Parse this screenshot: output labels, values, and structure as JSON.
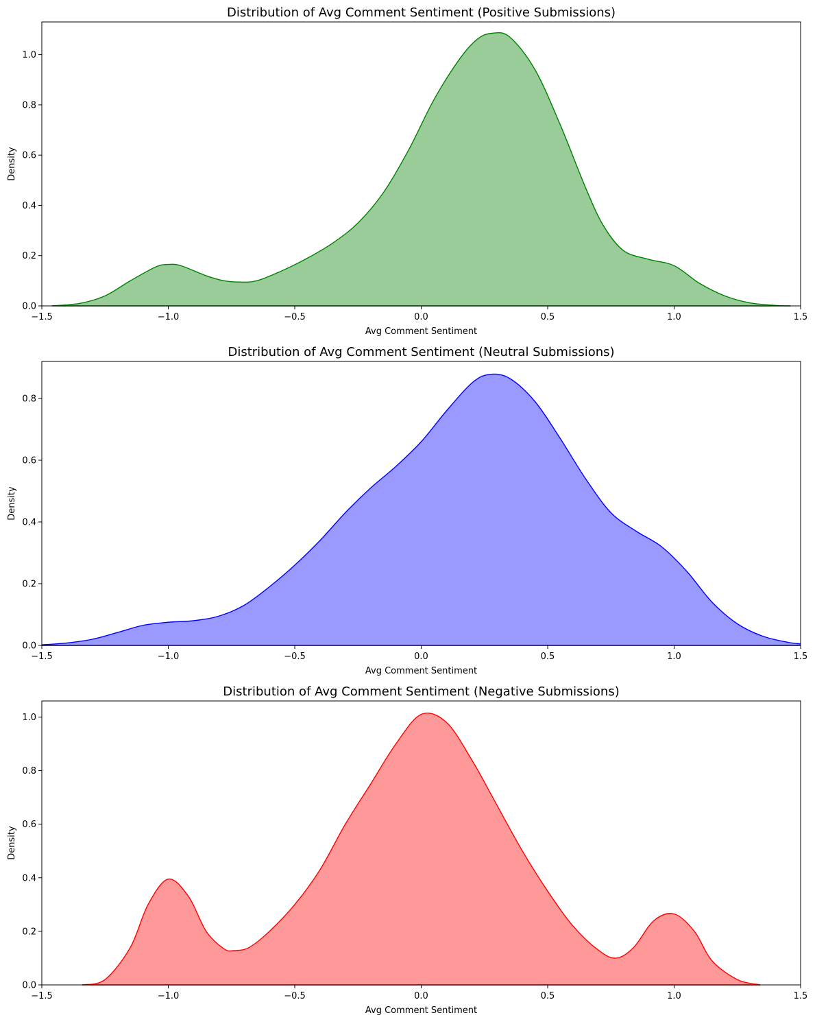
{
  "chart_data": [
    {
      "type": "area",
      "title": "Distribution of Avg Comment Sentiment (Positive Submissions)",
      "xlabel": "Avg Comment Sentiment",
      "ylabel": "Density",
      "xlim": [
        -1.5,
        1.5
      ],
      "ylim": [
        0,
        1.13
      ],
      "xticks": [
        -1.5,
        -1.0,
        -0.5,
        0.0,
        0.5,
        1.0,
        1.5
      ],
      "xtick_labels": [
        "−1.5",
        "−1.0",
        "−0.5",
        "0.0",
        "0.5",
        "1.0",
        "1.5"
      ],
      "yticks": [
        0,
        0.2,
        0.4,
        0.6,
        0.8,
        1.0
      ],
      "ytick_labels": [
        "0.0",
        "0.2",
        "0.4",
        "0.6",
        "0.8",
        "1.0"
      ],
      "color": "#008000",
      "fill_color": "#99cc99",
      "grid": false,
      "x": [
        -1.46,
        -1.35,
        -1.25,
        -1.15,
        -1.05,
        -1.0,
        -0.95,
        -0.85,
        -0.78,
        -0.72,
        -0.65,
        -0.55,
        -0.45,
        -0.35,
        -0.25,
        -0.15,
        -0.05,
        0.05,
        0.15,
        0.22,
        0.28,
        0.35,
        0.45,
        0.55,
        0.65,
        0.72,
        0.8,
        0.9,
        1.0,
        1.1,
        1.2,
        1.3,
        1.4,
        1.46
      ],
      "y": [
        0.0,
        0.01,
        0.04,
        0.1,
        0.155,
        0.165,
        0.16,
        0.12,
        0.1,
        0.095,
        0.1,
        0.14,
        0.19,
        0.25,
        0.33,
        0.45,
        0.62,
        0.82,
        0.98,
        1.06,
        1.085,
        1.07,
        0.94,
        0.72,
        0.47,
        0.32,
        0.22,
        0.185,
        0.16,
        0.09,
        0.04,
        0.012,
        0.002,
        0.0
      ]
    },
    {
      "type": "area",
      "title": "Distribution of Avg Comment Sentiment (Neutral Submissions)",
      "xlabel": "Avg Comment Sentiment",
      "ylabel": "Density",
      "xlim": [
        -1.5,
        1.5
      ],
      "ylim": [
        0,
        0.92
      ],
      "xticks": [
        -1.5,
        -1.0,
        -0.5,
        0.0,
        0.5,
        1.0,
        1.5
      ],
      "xtick_labels": [
        "−1.5",
        "−1.0",
        "−0.5",
        "0.0",
        "0.5",
        "1.0",
        "1.5"
      ],
      "yticks": [
        0,
        0.2,
        0.4,
        0.6,
        0.8
      ],
      "ytick_labels": [
        "0.0",
        "0.2",
        "0.4",
        "0.6",
        "0.8"
      ],
      "color": "#0000ff",
      "fill_color": "#9999ff",
      "grid": false,
      "x": [
        -1.5,
        -1.4,
        -1.3,
        -1.2,
        -1.1,
        -1.0,
        -0.9,
        -0.8,
        -0.7,
        -0.6,
        -0.5,
        -0.4,
        -0.3,
        -0.2,
        -0.1,
        0.0,
        0.1,
        0.2,
        0.27,
        0.35,
        0.45,
        0.55,
        0.65,
        0.75,
        0.85,
        0.95,
        1.05,
        1.15,
        1.25,
        1.35,
        1.45,
        1.5
      ],
      "y": [
        0.002,
        0.008,
        0.02,
        0.042,
        0.065,
        0.075,
        0.08,
        0.095,
        0.13,
        0.19,
        0.26,
        0.34,
        0.43,
        0.51,
        0.58,
        0.66,
        0.76,
        0.85,
        0.878,
        0.865,
        0.79,
        0.67,
        0.54,
        0.43,
        0.37,
        0.32,
        0.24,
        0.14,
        0.07,
        0.03,
        0.01,
        0.005
      ]
    },
    {
      "type": "area",
      "title": "Distribution of Avg Comment Sentiment (Negative Submissions)",
      "xlabel": "Avg Comment Sentiment",
      "ylabel": "Density",
      "xlim": [
        -1.5,
        1.5
      ],
      "ylim": [
        0,
        1.06
      ],
      "xticks": [
        -1.5,
        -1.0,
        -0.5,
        0.0,
        0.5,
        1.0,
        1.5
      ],
      "xtick_labels": [
        "−1.5",
        "−1.0",
        "−0.5",
        "0.0",
        "0.5",
        "1.0",
        "1.5"
      ],
      "yticks": [
        0,
        0.2,
        0.4,
        0.6,
        0.8,
        1.0
      ],
      "ytick_labels": [
        "0.0",
        "0.2",
        "0.4",
        "0.6",
        "0.8",
        "1.0"
      ],
      "color": "#ff0000",
      "fill_color": "#ff9999",
      "grid": false,
      "x": [
        -1.34,
        -1.25,
        -1.15,
        -1.08,
        -1.0,
        -0.92,
        -0.85,
        -0.78,
        -0.74,
        -0.68,
        -0.6,
        -0.5,
        -0.4,
        -0.3,
        -0.2,
        -0.1,
        0.0,
        0.1,
        0.2,
        0.3,
        0.4,
        0.5,
        0.6,
        0.7,
        0.77,
        0.84,
        0.92,
        1.0,
        1.08,
        1.15,
        1.25,
        1.34
      ],
      "y": [
        0.0,
        0.02,
        0.14,
        0.3,
        0.395,
        0.33,
        0.2,
        0.135,
        0.128,
        0.14,
        0.2,
        0.3,
        0.43,
        0.6,
        0.75,
        0.9,
        1.01,
        0.98,
        0.84,
        0.67,
        0.5,
        0.35,
        0.22,
        0.13,
        0.1,
        0.14,
        0.24,
        0.265,
        0.2,
        0.09,
        0.02,
        0.0
      ]
    }
  ]
}
